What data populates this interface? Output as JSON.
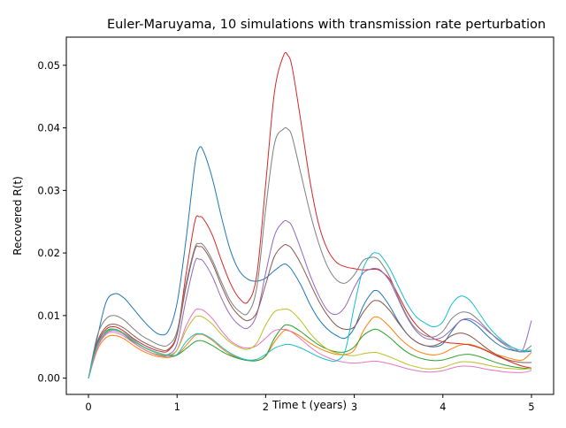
{
  "chart_data": {
    "type": "line",
    "title": "Euler-Maruyama, 10 simulations with transmission rate perturbation",
    "xlabel": "Time t (years)",
    "ylabel": "Recovered R(t)",
    "xlim": [
      -0.25,
      5.25
    ],
    "ylim": [
      -0.0026,
      0.0545
    ],
    "xticks": [
      0,
      1,
      2,
      3,
      4,
      5
    ],
    "xtick_labels": [
      "0",
      "1",
      "2",
      "3",
      "4",
      "5"
    ],
    "yticks": [
      0.0,
      0.01,
      0.02,
      0.03,
      0.04,
      0.05
    ],
    "ytick_labels": [
      "0.00",
      "0.01",
      "0.02",
      "0.03",
      "0.04",
      "0.05"
    ],
    "grid": false,
    "legend": "none",
    "x": [
      0,
      0.1,
      0.2,
      0.3,
      0.4,
      0.5,
      0.6,
      0.7,
      0.8,
      0.9,
      1.0,
      1.1,
      1.2,
      1.25,
      1.3,
      1.4,
      1.5,
      1.6,
      1.7,
      1.8,
      1.9,
      2.0,
      2.1,
      2.2,
      2.25,
      2.3,
      2.4,
      2.5,
      2.6,
      2.7,
      2.8,
      2.9,
      3.0,
      3.1,
      3.2,
      3.25,
      3.3,
      3.4,
      3.5,
      3.6,
      3.7,
      3.8,
      3.9,
      4.0,
      4.1,
      4.2,
      4.3,
      4.4,
      4.5,
      4.6,
      4.7,
      4.8,
      4.9,
      5.0
    ],
    "series": [
      {
        "color": "#1f77b4",
        "values": [
          0.0,
          0.0065,
          0.0122,
          0.0135,
          0.0128,
          0.0112,
          0.0095,
          0.008,
          0.007,
          0.0075,
          0.012,
          0.022,
          0.034,
          0.0368,
          0.0362,
          0.0318,
          0.0258,
          0.0205,
          0.0172,
          0.0158,
          0.0155,
          0.016,
          0.0172,
          0.0182,
          0.018,
          0.0172,
          0.0148,
          0.0118,
          0.0094,
          0.0078,
          0.0068,
          0.0064,
          0.008,
          0.0115,
          0.0137,
          0.014,
          0.0135,
          0.0115,
          0.009,
          0.007,
          0.0058,
          0.0052,
          0.005,
          0.0055,
          0.0075,
          0.0092,
          0.0092,
          0.0082,
          0.0068,
          0.0056,
          0.0048,
          0.0044,
          0.0042,
          0.0043
        ]
      },
      {
        "color": "#ff7f0e",
        "values": [
          0.0,
          0.0045,
          0.0065,
          0.0068,
          0.0063,
          0.0053,
          0.0044,
          0.0038,
          0.0034,
          0.0033,
          0.0037,
          0.0052,
          0.0068,
          0.007,
          0.0069,
          0.006,
          0.0048,
          0.0038,
          0.0032,
          0.0029,
          0.0028,
          0.0035,
          0.0058,
          0.0075,
          0.0076,
          0.0074,
          0.0066,
          0.0056,
          0.0048,
          0.0042,
          0.0038,
          0.0038,
          0.0045,
          0.0075,
          0.0095,
          0.0098,
          0.0095,
          0.0082,
          0.0066,
          0.0053,
          0.0044,
          0.0039,
          0.0037,
          0.004,
          0.0047,
          0.0053,
          0.0054,
          0.005,
          0.0044,
          0.0038,
          0.0034,
          0.003,
          0.0029,
          0.0041
        ]
      },
      {
        "color": "#2ca02c",
        "values": [
          0.0,
          0.005,
          0.0075,
          0.0078,
          0.007,
          0.0058,
          0.0048,
          0.0041,
          0.0037,
          0.0035,
          0.0037,
          0.0047,
          0.0058,
          0.006,
          0.0059,
          0.0052,
          0.0043,
          0.0036,
          0.0031,
          0.0028,
          0.0028,
          0.0036,
          0.0064,
          0.0083,
          0.0085,
          0.0083,
          0.0074,
          0.0063,
          0.0053,
          0.0046,
          0.0042,
          0.0042,
          0.005,
          0.0068,
          0.0077,
          0.0078,
          0.0075,
          0.0065,
          0.0052,
          0.0041,
          0.0034,
          0.003,
          0.0028,
          0.0029,
          0.0033,
          0.0037,
          0.0038,
          0.0035,
          0.003,
          0.0025,
          0.0021,
          0.0018,
          0.0016,
          0.0015
        ]
      },
      {
        "color": "#d62728",
        "values": [
          0.0,
          0.0055,
          0.0078,
          0.0082,
          0.0075,
          0.0064,
          0.0055,
          0.0048,
          0.0043,
          0.0044,
          0.007,
          0.0165,
          0.025,
          0.0258,
          0.0254,
          0.0228,
          0.0188,
          0.0152,
          0.0128,
          0.0122,
          0.0165,
          0.031,
          0.0458,
          0.0515,
          0.0516,
          0.0496,
          0.0408,
          0.0315,
          0.0245,
          0.0205,
          0.0185,
          0.0178,
          0.0175,
          0.0173,
          0.0174,
          0.0174,
          0.0171,
          0.0158,
          0.0132,
          0.0105,
          0.0085,
          0.0072,
          0.0063,
          0.0058,
          0.0056,
          0.0055,
          0.0053,
          0.0049,
          0.0043,
          0.0036,
          0.003,
          0.0024,
          0.0019,
          0.0016
        ]
      },
      {
        "color": "#9467bd",
        "values": [
          0.0,
          0.005,
          0.0072,
          0.0076,
          0.007,
          0.006,
          0.0051,
          0.0044,
          0.0039,
          0.0038,
          0.0055,
          0.0125,
          0.0185,
          0.019,
          0.0186,
          0.0162,
          0.0128,
          0.0101,
          0.0085,
          0.008,
          0.0102,
          0.0168,
          0.0228,
          0.025,
          0.025,
          0.0242,
          0.0205,
          0.0165,
          0.0132,
          0.0108,
          0.0102,
          0.0115,
          0.0145,
          0.0168,
          0.0175,
          0.0175,
          0.0172,
          0.0155,
          0.0125,
          0.0096,
          0.0075,
          0.0064,
          0.0062,
          0.0066,
          0.0078,
          0.0092,
          0.0095,
          0.0088,
          0.0076,
          0.0065,
          0.0055,
          0.0048,
          0.0045,
          0.0092
        ]
      },
      {
        "color": "#8c564b",
        "values": [
          0.0,
          0.0058,
          0.0082,
          0.0086,
          0.008,
          0.0069,
          0.0059,
          0.0052,
          0.0046,
          0.0046,
          0.007,
          0.0145,
          0.0205,
          0.021,
          0.0207,
          0.0183,
          0.0148,
          0.0118,
          0.01,
          0.0092,
          0.0105,
          0.015,
          0.0195,
          0.0212,
          0.0212,
          0.0206,
          0.0182,
          0.0152,
          0.0123,
          0.01,
          0.0084,
          0.0078,
          0.0082,
          0.0105,
          0.0122,
          0.0124,
          0.0122,
          0.0108,
          0.0088,
          0.007,
          0.0058,
          0.0052,
          0.0052,
          0.0058,
          0.0068,
          0.0072,
          0.0068,
          0.0058,
          0.0047,
          0.0038,
          0.0031,
          0.0027,
          0.0025,
          0.0025
        ]
      },
      {
        "color": "#e377c2",
        "values": [
          0.0,
          0.0048,
          0.007,
          0.0073,
          0.0067,
          0.0057,
          0.0048,
          0.0041,
          0.0036,
          0.0035,
          0.0045,
          0.0083,
          0.0108,
          0.011,
          0.0108,
          0.0095,
          0.0076,
          0.006,
          0.0051,
          0.0048,
          0.0052,
          0.0064,
          0.0076,
          0.0078,
          0.0077,
          0.0073,
          0.0062,
          0.005,
          0.004,
          0.0033,
          0.0028,
          0.0025,
          0.0024,
          0.0025,
          0.0027,
          0.0027,
          0.0026,
          0.0023,
          0.0019,
          0.0015,
          0.0012,
          0.001,
          0.001,
          0.0012,
          0.0016,
          0.0019,
          0.0019,
          0.0017,
          0.0014,
          0.0012,
          0.001,
          0.0009,
          0.0009,
          0.0012
        ]
      },
      {
        "color": "#7f7f7f",
        "values": [
          0.0,
          0.0068,
          0.0095,
          0.01,
          0.0093,
          0.008,
          0.0068,
          0.006,
          0.0053,
          0.0053,
          0.0075,
          0.015,
          0.0208,
          0.0215,
          0.0212,
          0.0188,
          0.0154,
          0.0124,
          0.0107,
          0.0104,
          0.0145,
          0.027,
          0.0375,
          0.0398,
          0.0398,
          0.0385,
          0.0325,
          0.0265,
          0.0215,
          0.0178,
          0.0157,
          0.0152,
          0.0165,
          0.0188,
          0.0193,
          0.0192,
          0.0185,
          0.0162,
          0.0128,
          0.0098,
          0.0078,
          0.0068,
          0.0066,
          0.0075,
          0.0095,
          0.0105,
          0.0104,
          0.0093,
          0.0078,
          0.0064,
          0.0053,
          0.0045,
          0.0042,
          0.0052
        ]
      },
      {
        "color": "#bcbd22",
        "values": [
          0.0,
          0.0052,
          0.0073,
          0.0077,
          0.0071,
          0.0061,
          0.0051,
          0.0044,
          0.0039,
          0.0037,
          0.0045,
          0.0076,
          0.0097,
          0.0099,
          0.0097,
          0.0086,
          0.007,
          0.0057,
          0.0049,
          0.0046,
          0.0056,
          0.0085,
          0.0106,
          0.011,
          0.011,
          0.0106,
          0.0091,
          0.0072,
          0.0057,
          0.0046,
          0.004,
          0.0037,
          0.0036,
          0.0039,
          0.0041,
          0.0041,
          0.0039,
          0.0034,
          0.0028,
          0.0022,
          0.0018,
          0.0015,
          0.0015,
          0.0017,
          0.0022,
          0.0026,
          0.0026,
          0.0024,
          0.0021,
          0.0018,
          0.0016,
          0.0015,
          0.0014,
          0.0016
        ]
      },
      {
        "color": "#17becf",
        "values": [
          0.0,
          0.0053,
          0.0074,
          0.0078,
          0.0072,
          0.0062,
          0.0052,
          0.0045,
          0.004,
          0.0037,
          0.0038,
          0.0058,
          0.007,
          0.0071,
          0.007,
          0.0062,
          0.005,
          0.004,
          0.0033,
          0.0029,
          0.003,
          0.0038,
          0.0048,
          0.0053,
          0.0054,
          0.0053,
          0.0048,
          0.0041,
          0.0034,
          0.0029,
          0.0028,
          0.0045,
          0.0115,
          0.0175,
          0.0198,
          0.02,
          0.0196,
          0.0175,
          0.0146,
          0.0118,
          0.0098,
          0.0088,
          0.0082,
          0.009,
          0.0118,
          0.0131,
          0.0125,
          0.0106,
          0.0085,
          0.0069,
          0.0057,
          0.0048,
          0.0044,
          0.0045
        ]
      }
    ]
  }
}
